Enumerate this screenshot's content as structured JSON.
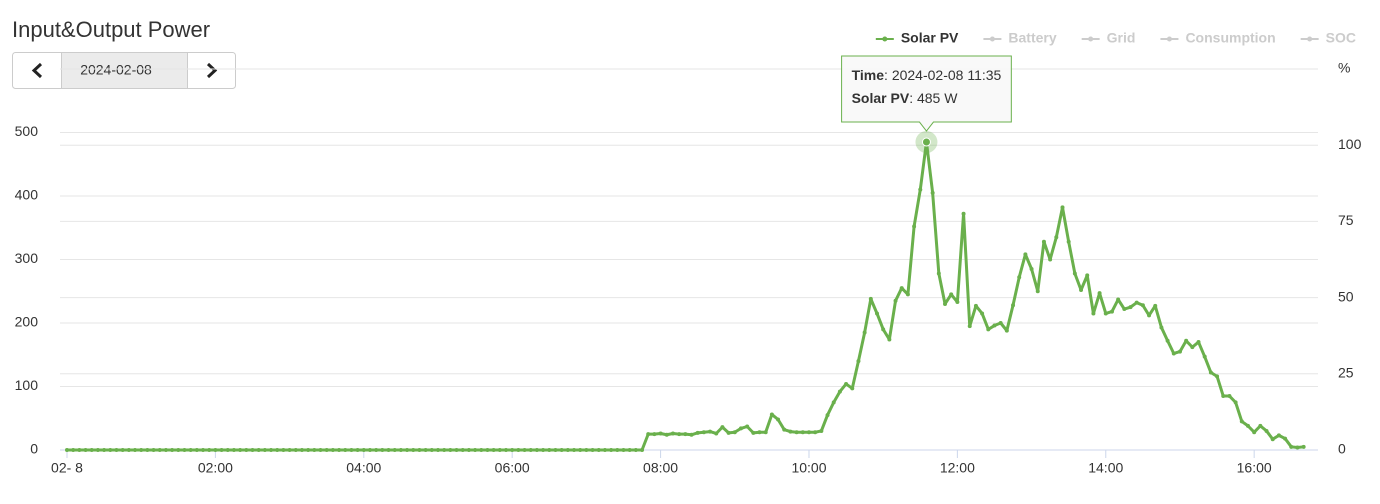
{
  "header": {
    "title": "Input&Output Power",
    "date": "2024-02-08"
  },
  "chart_data": {
    "type": "line",
    "x": [
      "00:00",
      "00:05",
      "00:10",
      "00:15",
      "00:20",
      "00:25",
      "00:30",
      "00:35",
      "00:40",
      "00:45",
      "00:50",
      "00:55",
      "01:00",
      "01:05",
      "01:10",
      "01:15",
      "01:20",
      "01:25",
      "01:30",
      "01:35",
      "01:40",
      "01:45",
      "01:50",
      "01:55",
      "02:00",
      "02:05",
      "02:10",
      "02:15",
      "02:20",
      "02:25",
      "02:30",
      "02:35",
      "02:40",
      "02:45",
      "02:50",
      "02:55",
      "03:00",
      "03:05",
      "03:10",
      "03:15",
      "03:20",
      "03:25",
      "03:30",
      "03:35",
      "03:40",
      "03:45",
      "03:50",
      "03:55",
      "04:00",
      "04:05",
      "04:10",
      "04:15",
      "04:20",
      "04:25",
      "04:30",
      "04:35",
      "04:40",
      "04:45",
      "04:50",
      "04:55",
      "05:00",
      "05:05",
      "05:10",
      "05:15",
      "05:20",
      "05:25",
      "05:30",
      "05:35",
      "05:40",
      "05:45",
      "05:50",
      "05:55",
      "06:00",
      "06:05",
      "06:10",
      "06:15",
      "06:20",
      "06:25",
      "06:30",
      "06:35",
      "06:40",
      "06:45",
      "06:50",
      "06:55",
      "07:00",
      "07:05",
      "07:10",
      "07:15",
      "07:20",
      "07:25",
      "07:30",
      "07:35",
      "07:40",
      "07:45",
      "07:50",
      "07:55",
      "08:00",
      "08:05",
      "08:10",
      "08:15",
      "08:20",
      "08:25",
      "08:30",
      "08:35",
      "08:40",
      "08:45",
      "08:50",
      "08:55",
      "09:00",
      "09:05",
      "09:10",
      "09:15",
      "09:20",
      "09:25",
      "09:30",
      "09:35",
      "09:40",
      "09:45",
      "09:50",
      "09:55",
      "10:00",
      "10:05",
      "10:10",
      "10:15",
      "10:20",
      "10:25",
      "10:30",
      "10:35",
      "10:40",
      "10:45",
      "10:50",
      "10:55",
      "11:00",
      "11:05",
      "11:10",
      "11:15",
      "11:20",
      "11:25",
      "11:30",
      "11:35",
      "11:40",
      "11:45",
      "11:50",
      "11:55",
      "12:00",
      "12:05",
      "12:10",
      "12:15",
      "12:20",
      "12:25",
      "12:30",
      "12:35",
      "12:40",
      "12:45",
      "12:50",
      "12:55",
      "13:00",
      "13:05",
      "13:10",
      "13:15",
      "13:20",
      "13:25",
      "13:30",
      "13:35",
      "13:40",
      "13:45",
      "13:50",
      "13:55",
      "14:00",
      "14:05",
      "14:10",
      "14:15",
      "14:20",
      "14:25",
      "14:30",
      "14:35",
      "14:40",
      "14:45",
      "14:50",
      "14:55",
      "15:00",
      "15:05",
      "15:10",
      "15:15",
      "15:20",
      "15:25",
      "15:30",
      "15:35",
      "15:40",
      "15:45",
      "15:50",
      "15:55",
      "16:00",
      "16:05",
      "16:10",
      "16:15",
      "16:20",
      "16:25",
      "16:30",
      "16:35",
      "16:40"
    ],
    "series": [
      {
        "name": "Solar PV",
        "color": "#6ab04c",
        "values": [
          0,
          0,
          0,
          0,
          0,
          0,
          0,
          0,
          0,
          0,
          0,
          0,
          0,
          0,
          0,
          0,
          0,
          0,
          0,
          0,
          0,
          0,
          0,
          0,
          0,
          0,
          0,
          0,
          0,
          0,
          0,
          0,
          0,
          0,
          0,
          0,
          0,
          0,
          0,
          0,
          0,
          0,
          0,
          0,
          0,
          0,
          0,
          0,
          0,
          0,
          0,
          0,
          0,
          0,
          0,
          0,
          0,
          0,
          0,
          0,
          0,
          0,
          0,
          0,
          0,
          0,
          0,
          0,
          0,
          0,
          0,
          0,
          0,
          0,
          0,
          0,
          0,
          0,
          0,
          0,
          0,
          0,
          0,
          0,
          0,
          0,
          0,
          0,
          0,
          0,
          0,
          0,
          0,
          0,
          25,
          25,
          26,
          24,
          26,
          25,
          25,
          24,
          27,
          28,
          29,
          26,
          36,
          27,
          28,
          34,
          37,
          27,
          28,
          28,
          56,
          48,
          32,
          29,
          28,
          28,
          28,
          28,
          30,
          55,
          75,
          92,
          104,
          97,
          140,
          185,
          238,
          215,
          190,
          174,
          235,
          255,
          245,
          352,
          410,
          485,
          405,
          278,
          230,
          245,
          233,
          372,
          195,
          227,
          215,
          190,
          196,
          200,
          188,
          228,
          272,
          308,
          285,
          250,
          328,
          300,
          335,
          382,
          328,
          278,
          252,
          275,
          215,
          247,
          215,
          218,
          237,
          222,
          225,
          232,
          228,
          212,
          227,
          193,
          172,
          152,
          155,
          172,
          162,
          170,
          147,
          122,
          116,
          85,
          85,
          75,
          45,
          38,
          28,
          38,
          30,
          17,
          23,
          18,
          5,
          4,
          5
        ]
      }
    ],
    "hidden_series": [
      {
        "name": "Battery",
        "color": "#cccccc"
      },
      {
        "name": "Grid",
        "color": "#cccccc"
      },
      {
        "name": "Consumption",
        "color": "#cccccc"
      },
      {
        "name": "SOC",
        "color": "#cccccc"
      }
    ],
    "xlim": [
      "00:00",
      "16:50"
    ],
    "xticks": [
      {
        "value": "00:00",
        "label": "02- 8"
      },
      "02:00",
      "04:00",
      "06:00",
      "08:00",
      "10:00",
      "12:00",
      "14:00",
      "16:00"
    ],
    "ylim": [
      0,
      600
    ],
    "yticks": [
      0,
      100,
      200,
      300,
      400,
      500
    ],
    "y2label": "%",
    "y2lim": [
      0,
      125
    ],
    "y2ticks": [
      0,
      25,
      50,
      75,
      100
    ],
    "grid": true,
    "legend": "top-right",
    "tooltip": {
      "time_label": "Time",
      "time": "2024-02-08 11:35",
      "series_label": "Solar PV",
      "value_label": "485 W"
    }
  }
}
